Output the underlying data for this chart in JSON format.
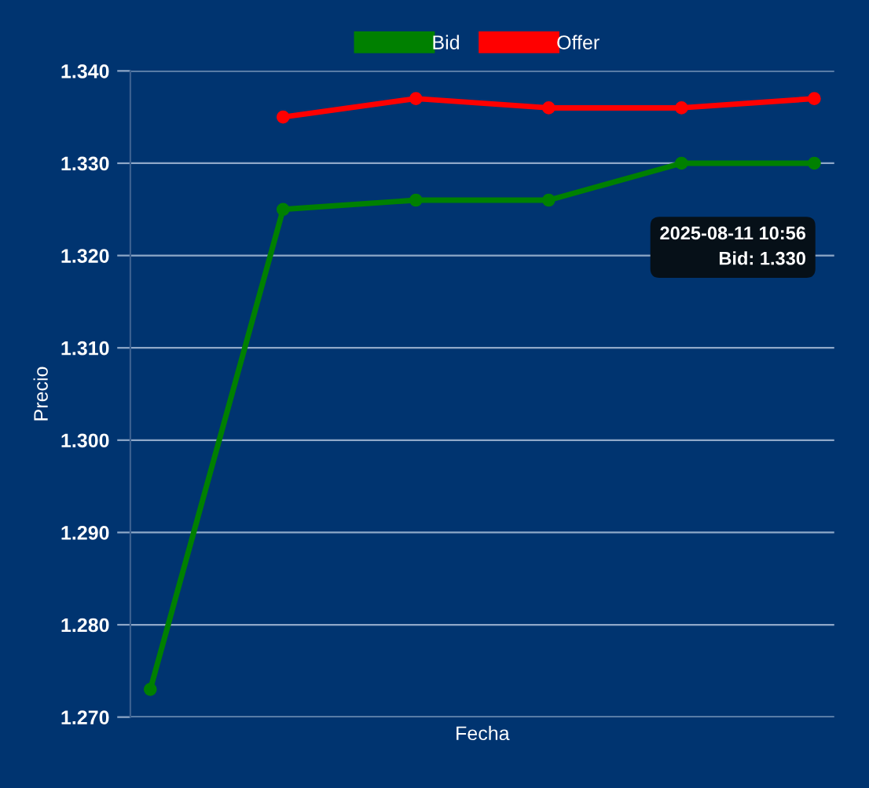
{
  "chart_data": {
    "type": "line",
    "xlabel": "Fecha",
    "ylabel": "Precio",
    "categories": [
      null,
      null,
      null,
      null,
      null,
      null
    ],
    "series": [
      {
        "name": "Bid",
        "color": "#008000",
        "values": [
          1.273,
          1.325,
          1.326,
          1.326,
          1.33,
          1.33
        ]
      },
      {
        "name": "Offer",
        "color": "#ff0000",
        "values": [
          null,
          1.335,
          1.337,
          1.336,
          1.336,
          1.337
        ]
      }
    ],
    "ylim": [
      1.27,
      1.34
    ],
    "yticks": [
      {
        "value": 1.27,
        "label": "1.270"
      },
      {
        "value": 1.28,
        "label": "1.280"
      },
      {
        "value": 1.29,
        "label": "1.290"
      },
      {
        "value": 1.3,
        "label": "1.300"
      },
      {
        "value": 1.31,
        "label": "1.310"
      },
      {
        "value": 1.32,
        "label": "1.320"
      },
      {
        "value": 1.33,
        "label": "1.330"
      },
      {
        "value": 1.34,
        "label": "1.340"
      }
    ],
    "grid": "y",
    "legend": "top",
    "marker": "circle",
    "line_style": "solid",
    "tick_labels": "y",
    "annotations": [
      "2025-08-11 10:56",
      "Bid: 1.330"
    ]
  }
}
